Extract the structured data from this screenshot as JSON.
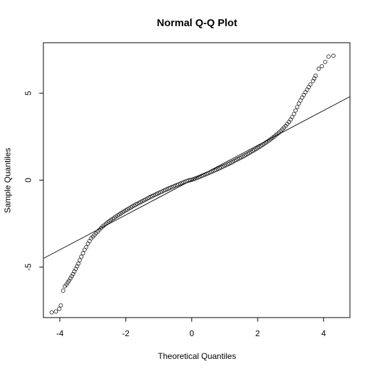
{
  "chart_data": {
    "type": "scatter",
    "title": "Normal Q-Q Plot",
    "xlabel": "Theoretical Quantiles",
    "ylabel": "Sample Quantiles",
    "xlim": [
      -4.5,
      4.8
    ],
    "ylim": [
      -7.9,
      7.9
    ],
    "xticks": [
      -4,
      -2,
      0,
      2,
      4
    ],
    "yticks": [
      -5,
      0,
      5
    ],
    "grid": false,
    "reference_line": {
      "intercept": 0,
      "slope": 1.0
    },
    "series": [
      {
        "marker": "open-circle",
        "x": [
          -4.25,
          -4.12,
          -4.02,
          -3.97,
          -3.9,
          -3.85,
          -3.8,
          -3.76,
          -3.72,
          -3.68,
          -3.64,
          -3.6,
          -3.56,
          -3.52,
          -3.48,
          -3.44,
          -3.4,
          -3.35,
          -3.3,
          -3.25,
          -3.2,
          -3.15,
          -3.1,
          -3.05,
          -3.0,
          -2.95,
          -2.9,
          -2.85,
          -2.8,
          -2.75,
          -2.7,
          -2.65,
          -2.6,
          -2.55,
          -2.5,
          -2.45,
          -2.4,
          -2.35,
          -2.3,
          -2.25,
          -2.2,
          -2.15,
          -2.1,
          -2.05,
          -2.0,
          -1.95,
          -1.9,
          -1.85,
          -1.8,
          -1.75,
          -1.7,
          -1.65,
          -1.6,
          -1.55,
          -1.5,
          -1.45,
          -1.4,
          -1.35,
          -1.3,
          -1.25,
          -1.2,
          -1.15,
          -1.1,
          -1.05,
          -1.0,
          -0.95,
          -0.9,
          -0.85,
          -0.8,
          -0.75,
          -0.7,
          -0.65,
          -0.6,
          -0.55,
          -0.5,
          -0.45,
          -0.4,
          -0.35,
          -0.3,
          -0.25,
          -0.2,
          -0.15,
          -0.1,
          -0.05,
          0.0,
          0.05,
          0.1,
          0.15,
          0.2,
          0.25,
          0.3,
          0.35,
          0.4,
          0.45,
          0.5,
          0.55,
          0.6,
          0.65,
          0.7,
          0.75,
          0.8,
          0.85,
          0.9,
          0.95,
          1.0,
          1.05,
          1.1,
          1.15,
          1.2,
          1.25,
          1.3,
          1.35,
          1.4,
          1.45,
          1.5,
          1.55,
          1.6,
          1.65,
          1.7,
          1.75,
          1.8,
          1.85,
          1.9,
          1.95,
          2.0,
          2.05,
          2.1,
          2.15,
          2.2,
          2.25,
          2.3,
          2.35,
          2.4,
          2.45,
          2.5,
          2.55,
          2.6,
          2.65,
          2.7,
          2.75,
          2.8,
          2.85,
          2.9,
          2.95,
          3.0,
          3.05,
          3.1,
          3.15,
          3.2,
          3.25,
          3.3,
          3.35,
          3.4,
          3.45,
          3.5,
          3.55,
          3.6,
          3.68,
          3.72,
          3.76,
          3.85,
          3.95,
          4.05,
          4.15,
          4.3
        ],
        "y": [
          -7.6,
          -7.55,
          -7.4,
          -7.2,
          -6.35,
          -6.1,
          -6.0,
          -5.88,
          -5.78,
          -5.65,
          -5.52,
          -5.4,
          -5.25,
          -5.1,
          -4.95,
          -4.8,
          -4.6,
          -4.4,
          -4.2,
          -4.0,
          -3.85,
          -3.65,
          -3.5,
          -3.35,
          -3.25,
          -3.15,
          -3.05,
          -2.95,
          -2.85,
          -2.75,
          -2.66,
          -2.58,
          -2.5,
          -2.43,
          -2.36,
          -2.29,
          -2.22,
          -2.16,
          -2.09,
          -2.03,
          -1.97,
          -1.91,
          -1.85,
          -1.79,
          -1.73,
          -1.68,
          -1.62,
          -1.57,
          -1.51,
          -1.46,
          -1.41,
          -1.36,
          -1.31,
          -1.26,
          -1.21,
          -1.16,
          -1.11,
          -1.06,
          -1.01,
          -0.96,
          -0.92,
          -0.87,
          -0.83,
          -0.78,
          -0.74,
          -0.69,
          -0.65,
          -0.6,
          -0.56,
          -0.52,
          -0.48,
          -0.44,
          -0.4,
          -0.36,
          -0.32,
          -0.28,
          -0.24,
          -0.2,
          -0.16,
          -0.12,
          -0.09,
          -0.05,
          -0.02,
          0.0,
          0.02,
          0.05,
          0.09,
          0.12,
          0.16,
          0.2,
          0.24,
          0.28,
          0.32,
          0.36,
          0.4,
          0.44,
          0.48,
          0.52,
          0.56,
          0.6,
          0.65,
          0.69,
          0.74,
          0.78,
          0.83,
          0.87,
          0.92,
          0.96,
          1.01,
          1.06,
          1.11,
          1.16,
          1.21,
          1.26,
          1.31,
          1.36,
          1.41,
          1.46,
          1.51,
          1.57,
          1.62,
          1.68,
          1.73,
          1.79,
          1.85,
          1.91,
          1.97,
          2.03,
          2.09,
          2.16,
          2.22,
          2.29,
          2.36,
          2.43,
          2.5,
          2.58,
          2.66,
          2.74,
          2.83,
          2.92,
          3.02,
          3.12,
          3.23,
          3.35,
          3.48,
          3.63,
          3.8,
          4.0,
          4.2,
          4.4,
          4.58,
          4.75,
          4.9,
          5.05,
          5.2,
          5.35,
          5.5,
          5.7,
          5.85,
          6.0,
          6.4,
          6.55,
          6.8,
          7.1,
          7.15
        ]
      }
    ]
  }
}
